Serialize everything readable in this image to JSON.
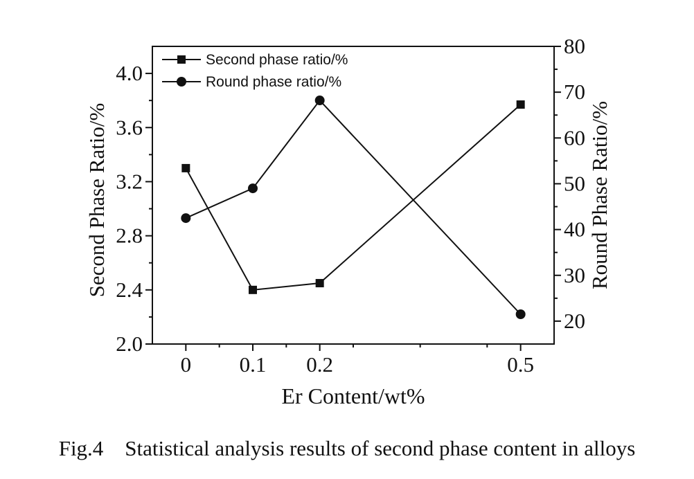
{
  "caption": "Fig.4    Statistical analysis results of second phase content in alloys",
  "chart_data": {
    "type": "line",
    "x": [
      0,
      0.1,
      0.2,
      0.5
    ],
    "x_tick_labels": [
      "0",
      "0.1",
      "0.2",
      "0.5"
    ],
    "xlabel": "Er Content/wt%",
    "xlim": [
      -0.05,
      0.55
    ],
    "ylabel_left": "Second Phase Ratio/%",
    "ylim_left": [
      2.0,
      4.2
    ],
    "yticks_left": [
      "2.0",
      "2.4",
      "2.8",
      "3.2",
      "3.6",
      "4.0"
    ],
    "ylabel_right": "Round Phase Ratio/%",
    "ylim_right": [
      15,
      80
    ],
    "yticks_right": [
      "20",
      "30",
      "40",
      "50",
      "60",
      "70",
      "80"
    ],
    "grid": false,
    "legend_position": "top-left",
    "series": [
      {
        "name": "Second phase ratio/%",
        "marker": "square",
        "axis": "left",
        "values": [
          3.3,
          2.4,
          2.45,
          3.77
        ]
      },
      {
        "name": "Round phase ratio/%",
        "marker": "circle",
        "axis": "right",
        "values": [
          42.5,
          49.0,
          68.2,
          21.5
        ]
      }
    ]
  }
}
